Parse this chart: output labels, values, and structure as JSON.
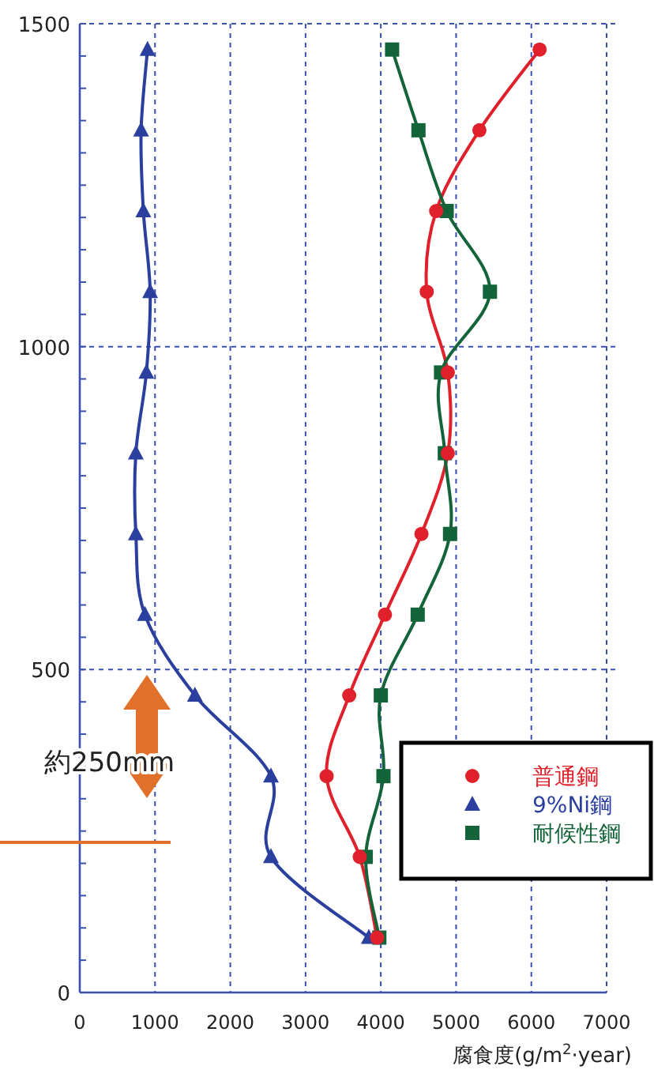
{
  "chart_data": {
    "type": "line",
    "xlabel": "腐食度(g/m$^{2}$·year)",
    "xlim": [
      0,
      7000
    ],
    "xticks": [
      0,
      1000,
      2000,
      3000,
      4000,
      5000,
      6000,
      7000
    ],
    "ylim": [
      0,
      1500
    ],
    "yticks": [
      0,
      500,
      1000,
      1500
    ],
    "grid": true,
    "legend": "bottom right",
    "annotations": [
      "約250mm"
    ],
    "series": [
      {
        "name": "普通鋼",
        "color": "#e0202a",
        "marker": "circle",
        "x": [
          3950,
          3720,
          3280,
          3580,
          4055,
          4540,
          4890,
          4890,
          4610,
          4735,
          5310,
          6110
        ],
        "values": [
          85,
          210,
          335,
          460,
          585,
          710,
          835,
          960,
          1085,
          1210,
          1335,
          1460
        ]
      },
      {
        "name": "9%Ni鋼",
        "color": "#2a3f9e",
        "marker": "triangle",
        "x": [
          3840,
          2540,
          2540,
          1530,
          865,
          745,
          745,
          885,
          935,
          845,
          815,
          900
        ],
        "values": [
          85,
          210,
          335,
          460,
          585,
          710,
          835,
          960,
          1085,
          1210,
          1335,
          1460
        ]
      },
      {
        "name": "耐候性鋼",
        "color": "#14643a",
        "marker": "square",
        "x": [
          3980,
          3800,
          4035,
          4000,
          4490,
          4920,
          4850,
          4800,
          5450,
          4875,
          4500,
          4150
        ],
        "values": [
          85,
          210,
          335,
          460,
          585,
          710,
          835,
          960,
          1085,
          1210,
          1335,
          1460
        ]
      }
    ]
  }
}
